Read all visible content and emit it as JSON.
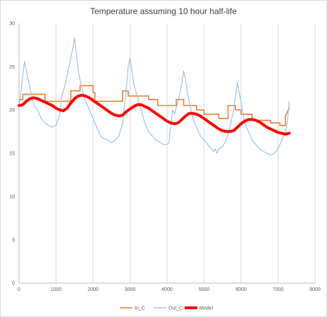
{
  "chart_data": {
    "type": "line",
    "title": "Temperature  assuming 10 hour half-life",
    "xlim": [
      0,
      8000
    ],
    "ylim": [
      0,
      30
    ],
    "x_ticks": [
      "0",
      "1000",
      "2000",
      "3000",
      "4000",
      "5000",
      "6000",
      "7000",
      "8000"
    ],
    "y_ticks": [
      "0",
      "5",
      "10",
      "15",
      "20",
      "25",
      "30"
    ],
    "grid": "vertical",
    "legend_position": "bottom",
    "series": [
      {
        "name": "In_C",
        "color": "#ed7d31",
        "x": [
          0,
          100,
          100,
          700,
          700,
          1400,
          1400,
          1650,
          1650,
          2000,
          2000,
          2050,
          2050,
          2800,
          2800,
          2950,
          2950,
          3500,
          3500,
          3750,
          3750,
          4250,
          4250,
          4450,
          4450,
          4800,
          4800,
          5000,
          5000,
          5400,
          5400,
          5650,
          5650,
          5850,
          5850,
          6000,
          6000,
          6300,
          6300,
          6800,
          6800,
          7050,
          7050,
          7200,
          7200,
          7300
        ],
        "y": [
          21.2,
          21.2,
          21.8,
          21.8,
          21,
          21,
          22.2,
          22.2,
          22.8,
          22.8,
          22,
          22,
          21,
          21,
          22.2,
          22.2,
          21.6,
          21.6,
          21.2,
          21.2,
          20.5,
          20.5,
          21.2,
          21.2,
          20.5,
          20.5,
          20,
          20,
          19.5,
          19.5,
          19,
          19,
          20.5,
          20.5,
          20,
          20,
          19.5,
          19.5,
          18.8,
          18.8,
          18.5,
          18.5,
          18.2,
          18.2,
          19.3,
          20.2
        ]
      },
      {
        "name": "Out_C",
        "color": "#9dc3e6",
        "x": [
          0,
          50,
          100,
          150,
          200,
          250,
          300,
          350,
          400,
          500,
          600,
          700,
          800,
          900,
          1000,
          1100,
          1150,
          1250,
          1350,
          1450,
          1500,
          1550,
          1600,
          1650,
          1700,
          1800,
          1850,
          1900,
          1950,
          2000,
          2050,
          2100,
          2150,
          2200,
          2250,
          2400,
          2500,
          2600,
          2700,
          2800,
          2850,
          2900,
          2950,
          3000,
          3050,
          3100,
          3200,
          3300,
          3400,
          3500,
          3600,
          3700,
          3800,
          3900,
          4000,
          4050,
          4100,
          4150,
          4200,
          4300,
          4400,
          4450,
          4500,
          4550,
          4600,
          4650,
          4700,
          4800,
          4900,
          5000,
          5100,
          5200,
          5250,
          5300,
          5350,
          5400,
          5500,
          5600,
          5700,
          5800,
          5850,
          5900,
          5950,
          6000,
          6050,
          6100,
          6200,
          6300,
          6400,
          6500,
          6600,
          6700,
          6800,
          6900,
          7000,
          7100,
          7200,
          7250,
          7300
        ],
        "y": [
          20.5,
          22,
          24,
          25.6,
          24.5,
          23.5,
          22.5,
          21.5,
          20.5,
          20,
          19,
          18.5,
          18.2,
          18,
          18.2,
          19.5,
          21.5,
          23,
          25,
          27,
          28.3,
          26.5,
          24.5,
          23.5,
          22.5,
          21,
          20.5,
          20,
          19.5,
          19,
          18.5,
          18,
          17.5,
          17,
          16.8,
          16.5,
          16.2,
          16.5,
          17,
          18.5,
          20.5,
          22.5,
          25,
          26,
          24.5,
          23,
          21.5,
          20,
          18.5,
          17.5,
          17,
          16.5,
          16.3,
          16,
          16,
          16.2,
          18,
          20,
          19.5,
          21,
          23,
          24.5,
          23.5,
          22,
          21,
          20,
          19,
          18,
          17,
          16.5,
          16,
          15.5,
          15.2,
          15.5,
          15,
          15.5,
          15.8,
          16.5,
          18,
          20,
          21.5,
          23.2,
          22,
          21,
          19.5,
          18.5,
          17.5,
          16.5,
          16,
          15.5,
          15.2,
          15,
          14.8,
          15,
          15.5,
          16.5,
          17.5,
          18.5,
          21
        ]
      },
      {
        "name": "Model",
        "color": "#ff0000",
        "x": [
          0,
          100,
          200,
          300,
          400,
          500,
          600,
          700,
          800,
          900,
          1000,
          1100,
          1200,
          1300,
          1400,
          1500,
          1600,
          1700,
          1800,
          1900,
          2000,
          2100,
          2200,
          2300,
          2400,
          2500,
          2600,
          2700,
          2800,
          2900,
          3000,
          3100,
          3200,
          3300,
          3400,
          3500,
          3600,
          3700,
          3800,
          3900,
          4000,
          4100,
          4200,
          4300,
          4400,
          4500,
          4600,
          4700,
          4800,
          4900,
          5000,
          5100,
          5200,
          5300,
          5400,
          5500,
          5600,
          5700,
          5800,
          5900,
          6000,
          6100,
          6200,
          6300,
          6400,
          6500,
          6600,
          6700,
          6800,
          6900,
          7000,
          7100,
          7200,
          7300
        ],
        "y": [
          20.5,
          20.6,
          21.0,
          21.3,
          21.4,
          21.3,
          21.1,
          20.9,
          20.7,
          20.5,
          20.2,
          20.0,
          19.9,
          20.2,
          20.8,
          21.3,
          21.6,
          21.7,
          21.6,
          21.4,
          21.1,
          20.8,
          20.5,
          20.2,
          19.9,
          19.6,
          19.4,
          19.3,
          19.4,
          19.8,
          20.1,
          20.4,
          20.6,
          20.6,
          20.4,
          20.2,
          19.9,
          19.6,
          19.3,
          19.0,
          18.7,
          18.5,
          18.4,
          18.5,
          18.9,
          19.3,
          19.6,
          19.6,
          19.5,
          19.3,
          19.0,
          18.7,
          18.4,
          18.1,
          17.8,
          17.6,
          17.5,
          17.5,
          17.6,
          18.0,
          18.4,
          18.7,
          18.9,
          18.9,
          18.8,
          18.6,
          18.3,
          18.0,
          17.8,
          17.6,
          17.4,
          17.3,
          17.2,
          17.3
        ]
      }
    ]
  }
}
